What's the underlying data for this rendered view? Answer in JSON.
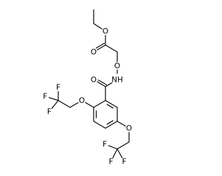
{
  "molecule": {
    "labels": [
      "O",
      "O",
      "O",
      "NH",
      "O",
      "O",
      "F",
      "F",
      "F",
      "O",
      "F",
      "F",
      "F"
    ]
  }
}
